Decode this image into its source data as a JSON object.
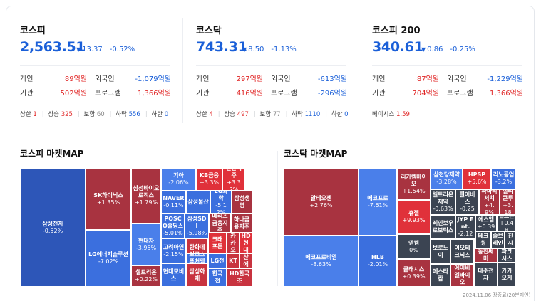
{
  "kospi": {
    "title": "코스피",
    "value": "2,563.51",
    "change": "13.37",
    "pct": "-0.52%",
    "r1": {
      "l1": "개인",
      "v1": "89억원",
      "l2": "외국인",
      "v2": "-1,079억원"
    },
    "r2": {
      "l1": "기관",
      "v1": "502억원",
      "l2": "프로그램",
      "v2": "1,366억원"
    },
    "stats": {
      "up_limit_label": "상한",
      "up_limit": "1",
      "up_label": "상승",
      "up": "325",
      "flat_label": "보합",
      "flat": "60",
      "down_label": "하락",
      "down": "556",
      "down_limit_label": "하한",
      "down_limit": "0"
    }
  },
  "kosdaq": {
    "title": "코스닥",
    "value": "743.31",
    "change": "8.50",
    "pct": "-1.13%",
    "r1": {
      "l1": "개인",
      "v1": "297억원",
      "l2": "외국인",
      "v2": "-613억원"
    },
    "r2": {
      "l1": "기관",
      "v1": "416억원",
      "l2": "프로그램",
      "v2": "-296억원"
    },
    "stats": {
      "up_limit_label": "상한",
      "up_limit": "4",
      "up_label": "상승",
      "up": "497",
      "flat_label": "보합",
      "flat": "77",
      "down_label": "하락",
      "down": "1110",
      "down_limit_label": "하한",
      "down_limit": "0"
    }
  },
  "kospi200": {
    "title": "코스피 200",
    "value": "340.61",
    "change": "0.86",
    "pct": "-0.25%",
    "r1": {
      "l1": "개인",
      "v1": "87억원",
      "l2": "외국인",
      "v2": "-1,229억원"
    },
    "r2": {
      "l1": "기관",
      "v1": "704억원",
      "l2": "프로그램",
      "v2": "1,366억원"
    },
    "basis_label": "베이시스",
    "basis": "1.59"
  },
  "kospi_map": {
    "title": "코스피 마켓MAP",
    "cells": [
      {
        "name": "삼성전자",
        "pct": "-0.52%"
      },
      {
        "name": "SK하이닉스",
        "pct": "+1.35%"
      },
      {
        "name": "LG에너지솔루션",
        "pct": "-7.02%"
      },
      {
        "name": "삼성바이오로직스",
        "pct": "+1.79%"
      },
      {
        "name": "현대차",
        "pct": "-3.95%"
      },
      {
        "name": "셀트리온",
        "pct": "+0.22%"
      },
      {
        "name": "기아",
        "pct": "-2.06%"
      },
      {
        "name": "KB금융",
        "pct": "+3.3%"
      },
      {
        "name": "신한지주",
        "pct": "+3.32%"
      },
      {
        "name": "NAVER",
        "pct": "-0.11%"
      },
      {
        "name": "삼성물산",
        "pct": ""
      },
      {
        "name": "LG화학",
        "pct": "-5.12%"
      },
      {
        "name": "삼성생명",
        "pct": ""
      },
      {
        "name": "POSCO홀딩스",
        "pct": "-5.01%"
      },
      {
        "name": "삼성SDI",
        "pct": "-5.98%"
      },
      {
        "name": "메리츠금융지주",
        "pct": ""
      },
      {
        "name": "하나금융지주",
        "pct": ""
      },
      {
        "name": "고려아연",
        "pct": "-2.15%"
      },
      {
        "name": "한화에어로스",
        "pct": ""
      },
      {
        "name": "크래프톤",
        "pct": ""
      },
      {
        "name": "카카오",
        "pct": ""
      },
      {
        "name": "HD현대",
        "pct": ""
      },
      {
        "name": "포스코퓨처엠",
        "pct": ""
      },
      {
        "name": "LG전",
        "pct": ""
      },
      {
        "name": "KT",
        "pct": ""
      },
      {
        "name": "두산에너",
        "pct": ""
      },
      {
        "name": "현대모비스",
        "pct": ""
      },
      {
        "name": "삼성화재",
        "pct": ""
      },
      {
        "name": "한국전",
        "pct": ""
      },
      {
        "name": "HD한국조",
        "pct": ""
      }
    ]
  },
  "kosdaq_map": {
    "title": "코스닥 마켓MAP",
    "cells": [
      {
        "name": "알테오젠",
        "pct": "+2.76%"
      },
      {
        "name": "에코프로비엠",
        "pct": "-8.63%"
      },
      {
        "name": "에코프로",
        "pct": "-7.61%"
      },
      {
        "name": "HLB",
        "pct": "-2.01%"
      },
      {
        "name": "리가켐바이오",
        "pct": "+1.54%"
      },
      {
        "name": "휴젤",
        "pct": "+9.93%"
      },
      {
        "name": "엔켐",
        "pct": "0%"
      },
      {
        "name": "클래시스",
        "pct": "+0.39%"
      },
      {
        "name": "삼천당제약",
        "pct": "-3.28%"
      },
      {
        "name": "HPSP",
        "pct": "+5.6%"
      },
      {
        "name": "리노공업",
        "pct": "-3.2%"
      },
      {
        "name": "셀트리온제약",
        "pct": "-0.63%"
      },
      {
        "name": "펄어비스",
        "pct": "-0.25"
      },
      {
        "name": "파마리서치",
        "pct": "+4.9%"
      },
      {
        "name": "실리콘투",
        "pct": "+3.18"
      },
      {
        "name": "레인보우로보틱스",
        "pct": ""
      },
      {
        "name": "JYP Ent.",
        "pct": "-2.12"
      },
      {
        "name": "에스엠",
        "pct": "+0.39"
      },
      {
        "name": "펩트론",
        "pct": "+0.48"
      },
      {
        "name": "테크윙",
        "pct": ""
      },
      {
        "name": "솔브레인",
        "pct": ""
      },
      {
        "name": "서진시스",
        "pct": ""
      },
      {
        "name": "보로노이",
        "pct": ""
      },
      {
        "name": "이오테크닉스",
        "pct": ""
      },
      {
        "name": "동진쎄미",
        "pct": ""
      },
      {
        "name": "파크시스",
        "pct": ""
      },
      {
        "name": "메스타캄",
        "pct": ""
      },
      {
        "name": "에이비엘바이오",
        "pct": ""
      },
      {
        "name": "대주전자",
        "pct": ""
      },
      {
        "name": "카카오게",
        "pct": ""
      }
    ]
  },
  "footer": "2024.11.06 장종료(20분지연)"
}
